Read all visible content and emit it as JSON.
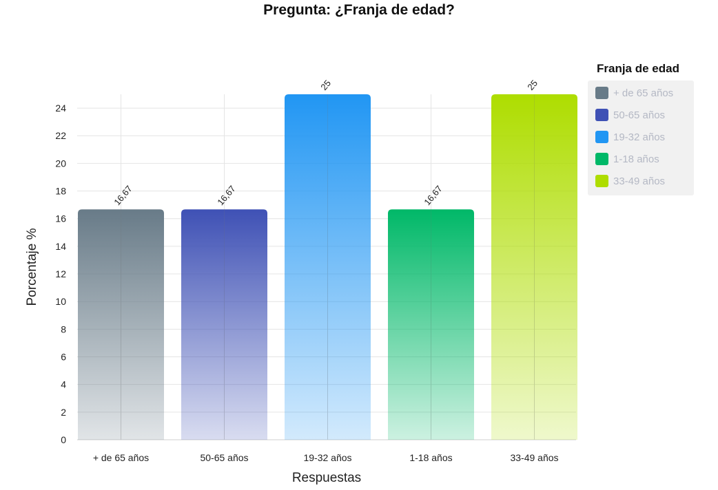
{
  "chart_data": {
    "type": "bar",
    "title": "Pregunta: ¿Franja de edad?",
    "xlabel": "Respuestas",
    "ylabel": "Porcentaje %",
    "categories": [
      "+ de 65 años",
      "50-65 años",
      "19-32 años",
      "1-18 años",
      "33-49 años"
    ],
    "values": [
      16.67,
      16.67,
      25,
      16.67,
      25
    ],
    "value_labels": [
      "16,67",
      "16,67",
      "25",
      "16,67",
      "25"
    ],
    "colors": [
      "#687b88",
      "#3f51b5",
      "#2196f3",
      "#00b868",
      "#aedd00"
    ],
    "ylim": [
      0,
      25
    ],
    "yticks": [
      0,
      2,
      4,
      6,
      8,
      10,
      12,
      14,
      16,
      18,
      20,
      22,
      24
    ],
    "grid": true,
    "legend": {
      "title": "Franja de edad",
      "placement": "right",
      "entries": [
        "+ de 65 años",
        "50-65 años",
        "19-32 años",
        "1-18 años",
        "33-49 años"
      ]
    }
  }
}
